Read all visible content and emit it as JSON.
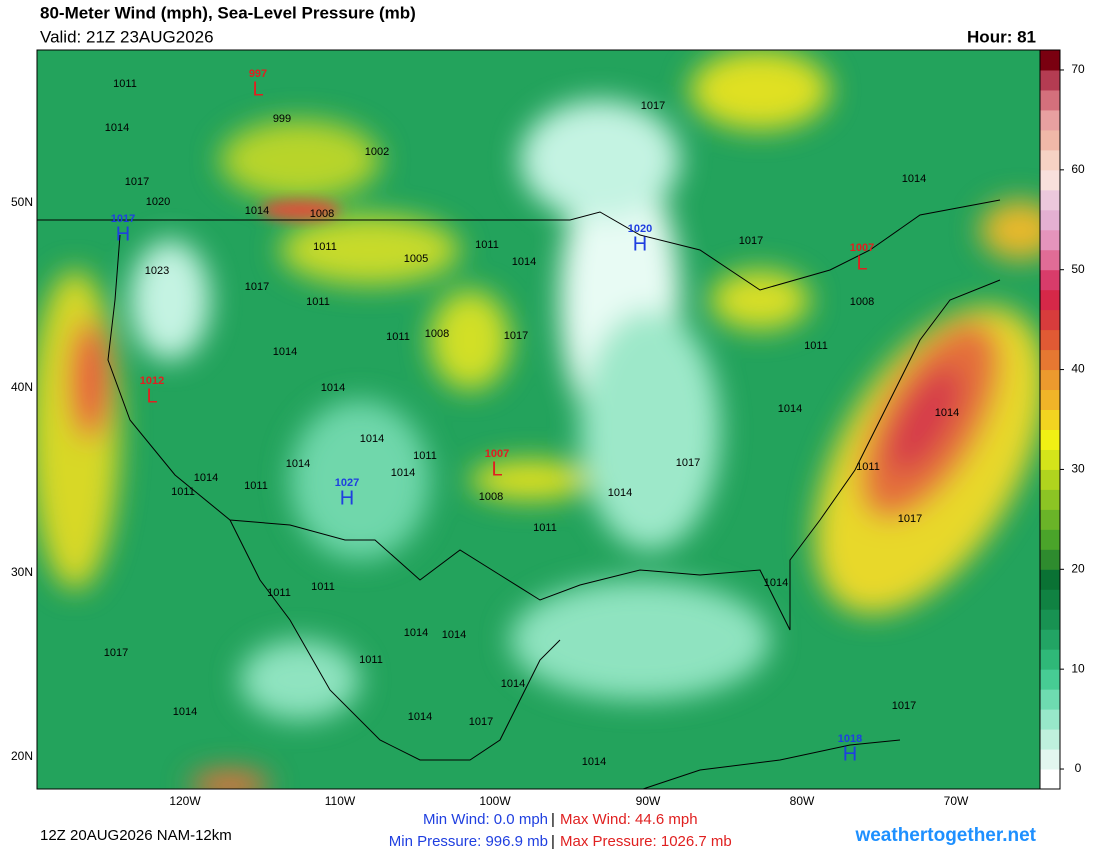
{
  "header": {
    "title": "80-Meter Wind (mph), Sea-Level Pressure (mb)",
    "valid": "Valid: 21Z 23AUG2026",
    "hour": "Hour: 81"
  },
  "footer": {
    "run": "12Z 20AUG2026 NAM-12km",
    "min_wind": "Min Wind:  0.0 mph",
    "max_wind": "Max Wind: 44.6 mph",
    "min_pressure": "Min Pressure: 996.9 mb",
    "max_pressure": "Max Pressure: 1026.7 mb",
    "separator": "|",
    "credit": "weathertogether.net"
  },
  "latitude_labels": [
    "50N",
    "40N",
    "30N",
    "20N"
  ],
  "longitude_labels": [
    "120W",
    "110W",
    "100W",
    "90W",
    "80W",
    "70W"
  ],
  "colorbar": {
    "lim": [
      -2,
      72
    ],
    "ticks": [
      0,
      10,
      20,
      30,
      40,
      50,
      60,
      70
    ],
    "colors": [
      "#ffffff",
      "#e2f7ef",
      "#bff0dd",
      "#97e8c9",
      "#6edbb0",
      "#47cc94",
      "#2fb878",
      "#22a464",
      "#189252",
      "#108242",
      "#0a7234",
      "#2e8b2e",
      "#4aa42a",
      "#6ab428",
      "#8cc424",
      "#b0d41e",
      "#d4e41a",
      "#f0f014",
      "#f2d420",
      "#f0b428",
      "#ec9a2e",
      "#e67832",
      "#e05a34",
      "#d83c3c",
      "#d62848",
      "#d83c6a",
      "#e06c96",
      "#e494bc",
      "#e4b0d2",
      "#ecc8dc",
      "#f8e0dc",
      "#f6d2c4",
      "#f0b8a8",
      "#e8a0a0",
      "#d4707c",
      "#b43c52",
      "#7a0010"
    ]
  },
  "pressure_centers": [
    {
      "symbol": "L",
      "value": 997
    },
    {
      "symbol": "H",
      "value": 1017
    },
    {
      "symbol": "H",
      "value": 1020
    },
    {
      "symbol": "L",
      "value": 1007
    },
    {
      "symbol": "L",
      "value": 1012
    },
    {
      "symbol": "H",
      "value": 1027
    },
    {
      "symbol": "L",
      "value": 1007
    },
    {
      "symbol": "H",
      "value": 1018
    }
  ],
  "isobar_labels": [
    1011,
    1014,
    999,
    1002,
    1017,
    1020,
    1014,
    1008,
    1011,
    1023,
    1017,
    1011,
    1005,
    1011,
    1014,
    1008,
    1011,
    1017,
    1014,
    1014,
    1014,
    1014,
    1014,
    1011,
    1011,
    1011,
    1014,
    1008,
    1011,
    1017,
    1017,
    1014,
    1008,
    1011,
    1014,
    1014,
    1011,
    1017,
    1014,
    1017,
    1014,
    1011,
    1011,
    1014,
    1014,
    1011,
    1017,
    1014,
    1014,
    1014,
    1017,
    1014,
    1017
  ]
}
